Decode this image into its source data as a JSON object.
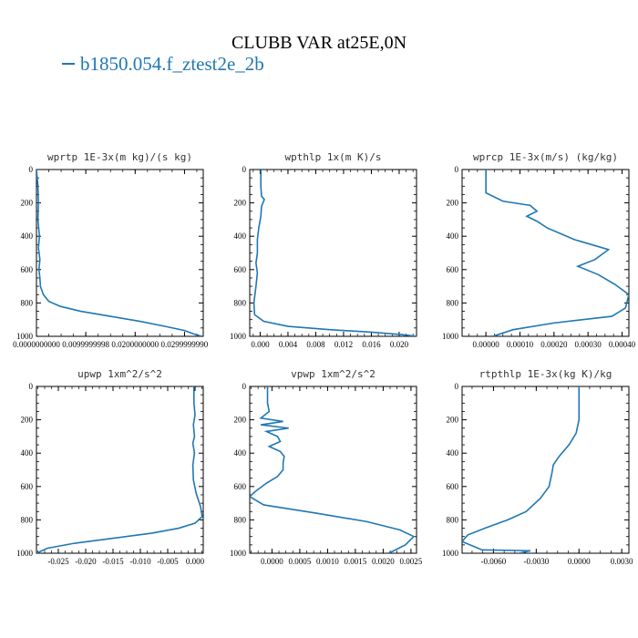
{
  "header": {
    "title": "CLUBB VAR at25E,0N",
    "legend_label": "b1850.054.f_ztest2e_2b",
    "line_color": "#1f77b4"
  },
  "chart_data": [
    {
      "type": "line",
      "title": "wprtp  1E-3x(m kg)/(s kg)",
      "xlim": [
        0.0,
        0.0338
      ],
      "ylim": [
        1000,
        0
      ],
      "x_ticks": [
        0.0,
        0.01,
        0.02,
        0.03
      ],
      "x_tick_labels": [
        "0.0000000000",
        "0.0099999998",
        "0.0200000000",
        "0.0299999990"
      ],
      "y_ticks": [
        0,
        200,
        400,
        600,
        800,
        1000
      ],
      "y_tick_labels": [
        "0",
        "200",
        "400",
        "600",
        "800",
        "1000"
      ],
      "series": [
        {
          "x": [
            0.0,
            0.0003,
            0.0004,
            0.0003,
            0.0006,
            0.0004,
            0.0007,
            0.0005,
            0.0007,
            0.0008,
            0.0014,
            0.0025,
            0.0048,
            0.009,
            0.015,
            0.021,
            0.026,
            0.03,
            0.0318,
            0.0335
          ],
          "y": [
            0,
            100,
            200,
            300,
            400,
            470,
            540,
            600,
            650,
            700,
            750,
            790,
            820,
            850,
            880,
            910,
            940,
            965,
            985,
            1000
          ]
        }
      ]
    },
    {
      "type": "line",
      "title": "wpthlp  1x(m K)/s",
      "xlim": [
        -0.0015,
        0.0225
      ],
      "ylim": [
        1000,
        0
      ],
      "x_ticks": [
        0.0,
        0.004,
        0.008,
        0.012,
        0.016,
        0.02
      ],
      "x_tick_labels": [
        "0.000",
        "0.004",
        "0.008",
        "0.012",
        "0.016",
        "0.020"
      ],
      "y_ticks": [
        0,
        200,
        400,
        600,
        800,
        1000
      ],
      "y_tick_labels": [
        "0",
        "200",
        "400",
        "600",
        "800",
        "1000"
      ],
      "series": [
        {
          "x": [
            0.0001,
            0.0001,
            0.0002,
            0.0006,
            0.0002,
            0.0001,
            -0.0002,
            -0.0004,
            -0.0004,
            -0.0006,
            -0.0004,
            -0.0006,
            -0.0009,
            -0.0008,
            0.0005,
            0.004,
            0.01,
            0.016,
            0.0205,
            0.0225
          ],
          "y": [
            0,
            100,
            160,
            180,
            220,
            280,
            350,
            420,
            500,
            560,
            620,
            700,
            800,
            870,
            910,
            940,
            960,
            975,
            990,
            1000
          ]
        }
      ]
    },
    {
      "type": "line",
      "title": "wprcp  1E-3x(m/s) (kg/kg)",
      "xlim": [
        -7e-05,
        0.00042
      ],
      "ylim": [
        1000,
        0
      ],
      "x_ticks": [
        0.0,
        0.0001,
        0.0002,
        0.0003,
        0.0004
      ],
      "x_tick_labels": [
        "0.00000",
        "0.00010",
        "0.00020",
        "0.00030",
        "0.00040"
      ],
      "y_ticks": [
        0,
        200,
        400,
        600,
        800,
        1000
      ],
      "y_tick_labels": [
        "0",
        "200",
        "400",
        "600",
        "800",
        "1000"
      ],
      "series": [
        {
          "x": [
            0.0,
            0.0,
            0.0,
            5e-05,
            0.00013,
            0.00015,
            0.00012,
            0.00015,
            0.00018,
            0.00026,
            0.00036,
            0.00032,
            0.00027,
            0.00033,
            0.00038,
            0.00042,
            0.00041,
            0.00037,
            0.0002,
            8e-05,
            2e-05
          ],
          "y": [
            0,
            70,
            140,
            190,
            215,
            250,
            280,
            310,
            350,
            420,
            480,
            540,
            580,
            630,
            690,
            750,
            830,
            880,
            920,
            960,
            1000
          ]
        }
      ]
    },
    {
      "type": "line",
      "title": "upwp  1xm^2/s^2",
      "xlim": [
        -0.029,
        0.0015
      ],
      "ylim": [
        1000,
        0
      ],
      "x_ticks": [
        -0.025,
        -0.02,
        -0.015,
        -0.01,
        -0.005,
        0.0
      ],
      "x_tick_labels": [
        "-0.025",
        "-0.020",
        "-0.015",
        "-0.010",
        "-0.005",
        "0.000"
      ],
      "y_ticks": [
        0,
        200,
        400,
        600,
        800,
        1000
      ],
      "y_tick_labels": [
        "0",
        "200",
        "400",
        "600",
        "800",
        "1000"
      ],
      "series": [
        {
          "x": [
            -0.0002,
            -0.0002,
            0.0,
            -0.0003,
            -0.0001,
            -0.0004,
            -0.0001,
            -0.0004,
            -0.0003,
            0.0002,
            0.001,
            0.0013,
            0.0,
            -0.003,
            -0.008,
            -0.015,
            -0.022,
            -0.027,
            -0.029
          ],
          "y": [
            0,
            100,
            170,
            230,
            300,
            340,
            400,
            470,
            560,
            640,
            720,
            780,
            820,
            850,
            880,
            910,
            940,
            970,
            1000
          ]
        }
      ]
    },
    {
      "type": "line",
      "title": "vpwp  1xm^2/s^2",
      "xlim": [
        -0.0004,
        0.0026
      ],
      "ylim": [
        1000,
        0
      ],
      "x_ticks": [
        0.0,
        0.0005,
        0.001,
        0.0015,
        0.002,
        0.0025
      ],
      "x_tick_labels": [
        "0.0000",
        "0.0005",
        "0.0010",
        "0.0015",
        "0.0020",
        "0.0025"
      ],
      "y_ticks": [
        0,
        200,
        400,
        600,
        800,
        1000
      ],
      "y_tick_labels": [
        "0",
        "200",
        "400",
        "600",
        "800",
        "1000"
      ],
      "series": [
        {
          "x": [
            -8e-05,
            -8e-05,
            -5e-05,
            -0.0002,
            0.0002,
            -0.0002,
            0.0003,
            -0.0001,
            0.0001,
            0.00015,
            -5e-05,
            0.00015,
            0.00022,
            0.0002,
            0.0002,
            0.0001,
            -0.0001,
            -0.0003,
            -0.0004,
            -0.00015,
            0.0008,
            0.0017,
            0.0023,
            0.00255,
            0.0024,
            0.0021
          ],
          "y": [
            0,
            100,
            150,
            190,
            210,
            230,
            250,
            270,
            300,
            330,
            360,
            390,
            420,
            460,
            500,
            540,
            580,
            630,
            660,
            710,
            760,
            810,
            860,
            900,
            950,
            1000
          ]
        }
      ]
    },
    {
      "type": "line",
      "title": "rtpthlp  1E-3x(kg K)/kg",
      "xlim": [
        -0.0082,
        0.0035
      ],
      "ylim": [
        1000,
        0
      ],
      "x_ticks": [
        -0.006,
        -0.003,
        0.0,
        0.003
      ],
      "x_tick_labels": [
        "-0.0060",
        "-0.0030",
        "0.0000",
        "0.0030"
      ],
      "y_ticks": [
        0,
        200,
        400,
        600,
        800,
        1000
      ],
      "y_tick_labels": [
        "0",
        "200",
        "400",
        "600",
        "800",
        "1000"
      ],
      "series": [
        {
          "x": [
            0.0,
            0.0,
            0.0,
            -0.0002,
            -0.0007,
            -0.0014,
            -0.0018,
            -0.0019,
            -0.0021,
            -0.0027,
            -0.0037,
            -0.005,
            -0.0066,
            -0.0078,
            -0.0082,
            -0.0068,
            -0.0034,
            -0.0042
          ],
          "y": [
            0,
            100,
            200,
            280,
            350,
            420,
            470,
            520,
            600,
            670,
            750,
            800,
            850,
            890,
            930,
            980,
            985,
            1000
          ]
        }
      ]
    }
  ]
}
